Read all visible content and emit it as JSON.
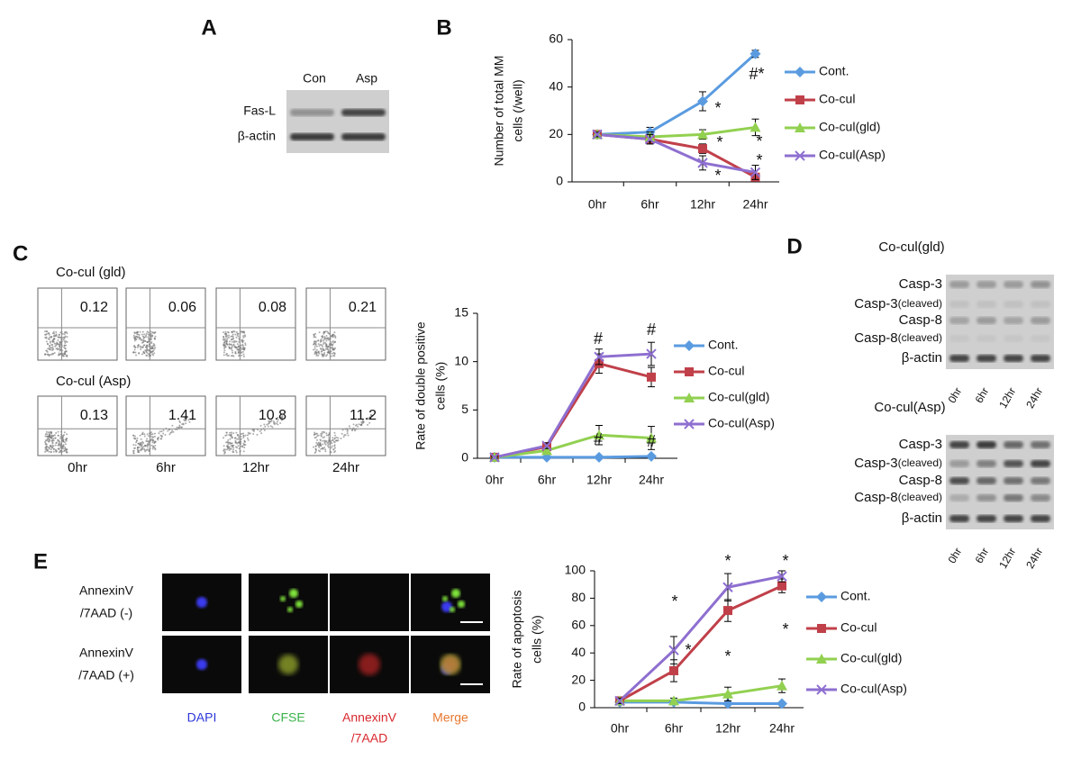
{
  "panel_a": {
    "letter": "A",
    "lanes": [
      "Con",
      "Asp"
    ],
    "rows": [
      "Fas-L",
      "β-actin"
    ]
  },
  "chart_data": [
    {
      "type": "line",
      "label": "B",
      "ylabel": [
        "Number of total MM",
        "cells (/well)"
      ],
      "categories": [
        "0hr",
        "6hr",
        "12hr",
        "24hr"
      ],
      "ylim": [
        0,
        60
      ],
      "yticks": [
        0,
        20,
        40,
        60
      ],
      "series": [
        {
          "name": "Cont.",
          "color": "#5a9be0",
          "marker": "diamond",
          "values": [
            20,
            21,
            34,
            54
          ],
          "errors": [
            1,
            2,
            4,
            1.5
          ]
        },
        {
          "name": "Co-cul",
          "color": "#c0404a",
          "marker": "square",
          "values": [
            20,
            18,
            14,
            2
          ],
          "errors": [
            1,
            2,
            2,
            1
          ]
        },
        {
          "name": "Co-cul(gld)",
          "color": "#92d050",
          "marker": "triangle",
          "values": [
            20,
            19,
            20,
            23
          ],
          "errors": [
            1,
            2,
            2,
            3.5
          ]
        },
        {
          "name": "Co-cul(Asp)",
          "color": "#8e6fd0",
          "marker": "x",
          "values": [
            20,
            18,
            8,
            4
          ],
          "errors": [
            1,
            2,
            3,
            3
          ]
        }
      ],
      "annotations": [
        "#*",
        "*",
        "*",
        "*",
        "*",
        "*"
      ]
    },
    {
      "type": "line",
      "ylabel": [
        "Rate of double positive",
        "cells (%)"
      ],
      "categories": [
        "0hr",
        "6hr",
        "12hr",
        "24hr"
      ],
      "ylim": [
        0,
        15
      ],
      "yticks": [
        0,
        5,
        10,
        15
      ],
      "series": [
        {
          "name": "Cont.",
          "color": "#5a9be0",
          "marker": "diamond",
          "values": [
            0.1,
            0.1,
            0.1,
            0.2
          ],
          "errors": [
            0.05,
            0.05,
            0.05,
            0.05
          ]
        },
        {
          "name": "Co-cul",
          "color": "#c0404a",
          "marker": "square",
          "values": [
            0.1,
            1.2,
            9.8,
            8.4
          ],
          "errors": [
            0.1,
            0.3,
            1,
            1
          ]
        },
        {
          "name": "Co-cul(gld)",
          "color": "#92d050",
          "marker": "triangle",
          "values": [
            0.1,
            0.8,
            2.4,
            2.1
          ],
          "errors": [
            0.1,
            0.2,
            1,
            1.2
          ]
        },
        {
          "name": "Co-cul(Asp)",
          "color": "#8e6fd0",
          "marker": "x",
          "values": [
            0.1,
            1.3,
            10.5,
            10.8
          ],
          "errors": [
            0.1,
            0.3,
            0.8,
            1.2
          ]
        }
      ],
      "annotations": [
        "#",
        "#",
        "#",
        "#"
      ]
    },
    {
      "type": "line",
      "ylabel": [
        "Rate of apoptosis",
        "cells (%)"
      ],
      "categories": [
        "0hr",
        "6hr",
        "12hr",
        "24hr"
      ],
      "ylim": [
        0,
        100
      ],
      "yticks": [
        0,
        20,
        40,
        60,
        80,
        100
      ],
      "series": [
        {
          "name": "Cont.",
          "color": "#5a9be0",
          "marker": "diamond",
          "values": [
            4,
            4,
            3,
            3
          ],
          "errors": [
            1,
            1,
            1,
            1
          ]
        },
        {
          "name": "Co-cul",
          "color": "#c0404a",
          "marker": "square",
          "values": [
            5,
            27,
            71,
            89
          ],
          "errors": [
            2,
            8,
            8,
            5
          ]
        },
        {
          "name": "Co-cul(gld)",
          "color": "#92d050",
          "marker": "triangle",
          "values": [
            5,
            5,
            10,
            16
          ],
          "errors": [
            2,
            2,
            5,
            5
          ]
        },
        {
          "name": "Co-cul(Asp)",
          "color": "#8e6fd0",
          "marker": "x",
          "values": [
            5,
            42,
            88,
            96
          ],
          "errors": [
            2,
            10,
            10,
            4
          ]
        }
      ],
      "annotations": [
        "*",
        "*",
        "*",
        "*",
        "*",
        "*"
      ]
    }
  ],
  "panel_c": {
    "letter": "C",
    "conditions": [
      {
        "name": "Co-cul (gld)",
        "values": [
          "0.12",
          "0.06",
          "0.08",
          "0.21"
        ]
      },
      {
        "name": "Co-cul (Asp)",
        "values": [
          "0.13",
          "1.41",
          "10.8",
          "11.2"
        ]
      }
    ],
    "times": [
      "0hr",
      "6hr",
      "12hr",
      "24hr"
    ]
  },
  "panel_d": {
    "letter": "D",
    "blots": [
      {
        "title": "Co-cul(gld)",
        "rows": [
          [
            "Casp-3"
          ],
          [
            "Casp-3",
            "(cleaved)"
          ],
          [
            "Casp-8"
          ],
          [
            "Casp-8",
            "(cleaved)"
          ],
          [
            "β-actin"
          ]
        ],
        "lanes": [
          "0hr",
          "6hr",
          "12hr",
          "24hr"
        ]
      },
      {
        "title": "Co-cul(Asp)",
        "rows": [
          [
            "Casp-3"
          ],
          [
            "Casp-3",
            "(cleaved)"
          ],
          [
            "Casp-8"
          ],
          [
            "Casp-8",
            "(cleaved)"
          ],
          [
            "β-actin"
          ]
        ],
        "lanes": [
          "0hr",
          "6hr",
          "12hr",
          "24hr"
        ]
      }
    ]
  },
  "panel_e": {
    "letter": "E",
    "rows": [
      [
        "AnnexinV",
        "/7AAD (-)"
      ],
      [
        "AnnexinV",
        "/7AAD (+)"
      ]
    ],
    "channels": [
      {
        "name": [
          "DAPI"
        ],
        "color": "#2b35d8"
      },
      {
        "name": [
          "CFSE"
        ],
        "color": "#3cb34a"
      },
      {
        "name": [
          "AnnexinV",
          "/7AAD"
        ],
        "color": "#d8262c"
      },
      {
        "name": [
          "Merge"
        ],
        "color": "#e8772e"
      }
    ]
  }
}
